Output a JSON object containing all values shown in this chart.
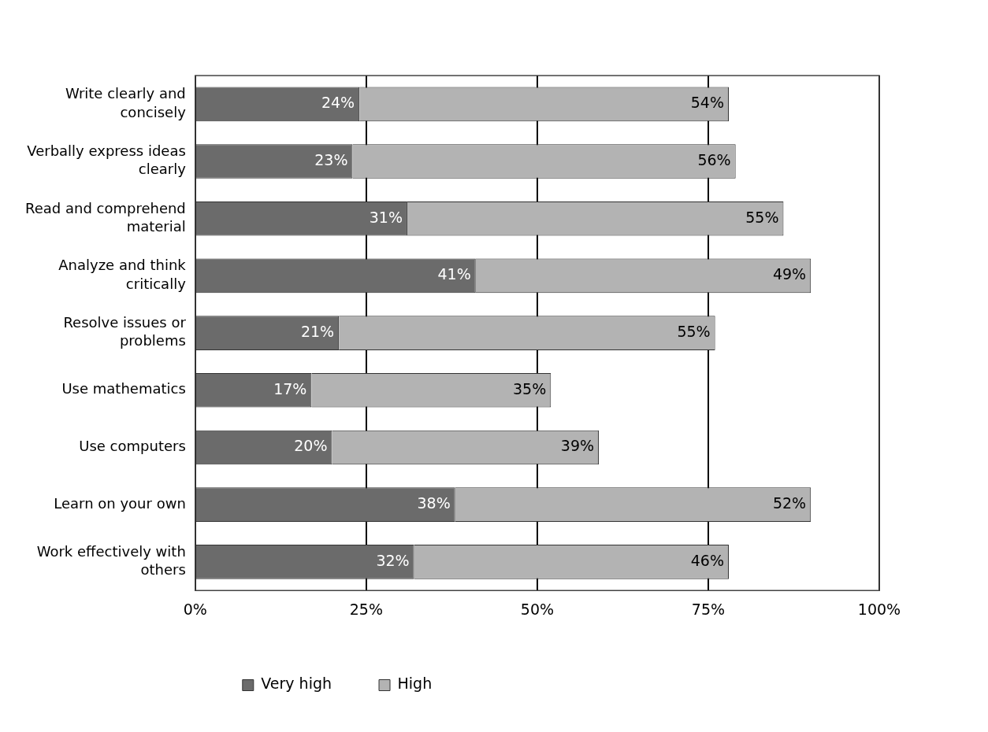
{
  "chart_data": {
    "type": "bar",
    "orientation": "horizontal",
    "stacked": true,
    "categories": [
      "Write clearly and concisely",
      "Verbally express ideas clearly",
      "Read and comprehend material",
      "Analyze and think critically",
      "Resolve issues or problems",
      "Use mathematics",
      "Use computers",
      "Learn on your own",
      "Work effectively with others"
    ],
    "series": [
      {
        "name": "Very high",
        "color": "#6b6b6b",
        "values": [
          24,
          23,
          31,
          41,
          21,
          17,
          20,
          38,
          32
        ],
        "value_labels": [
          "24%",
          "23%",
          "31%",
          "41%",
          "21%",
          "17%",
          "20%",
          "38%",
          "32%"
        ]
      },
      {
        "name": "High",
        "color": "#b3b3b3",
        "values": [
          54,
          56,
          55,
          49,
          55,
          35,
          39,
          52,
          46
        ],
        "value_labels": [
          "54%",
          "56%",
          "55%",
          "49%",
          "55%",
          "35%",
          "39%",
          "52%",
          "46%"
        ]
      }
    ],
    "xlim": [
      0,
      100
    ],
    "xticks": [
      {
        "value": 0,
        "label": "0%"
      },
      {
        "value": 25,
        "label": "25%"
      },
      {
        "value": 50,
        "label": "50%"
      },
      {
        "value": 75,
        "label": "75%"
      },
      {
        "value": 100,
        "label": "100%"
      }
    ],
    "grid": "x",
    "legend": "bottom left"
  }
}
